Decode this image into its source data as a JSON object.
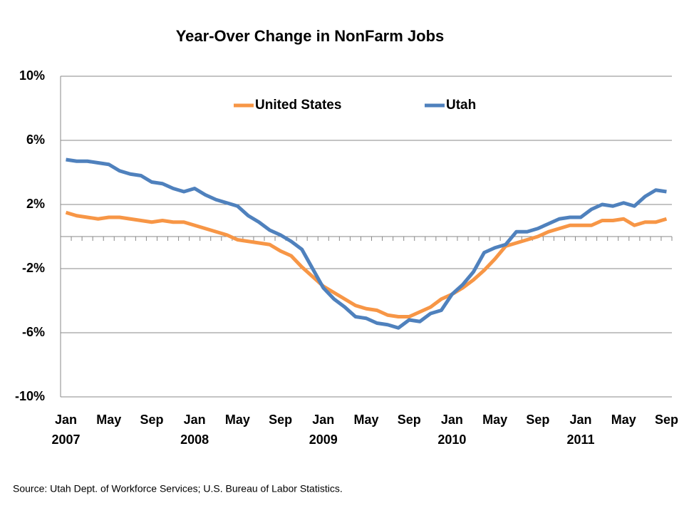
{
  "chart_data": {
    "type": "line",
    "title": "Year-Over Change in NonFarm Jobs",
    "source": "Source: Utah Dept. of Workforce Services; U.S. Bureau of Labor Statistics.",
    "categories": [
      "Jan 2007",
      null,
      null,
      null,
      "May",
      null,
      null,
      null,
      "Sep",
      null,
      null,
      null,
      "Jan 2008",
      null,
      null,
      null,
      "May",
      null,
      null,
      null,
      "Sep",
      null,
      null,
      null,
      "Jan 2009",
      null,
      null,
      null,
      "May",
      null,
      null,
      null,
      "Sep",
      null,
      null,
      null,
      "Jan 2010",
      null,
      null,
      null,
      "May",
      null,
      null,
      null,
      "Sep",
      null,
      null,
      null,
      "Jan 2011",
      null,
      null,
      null,
      "May",
      null,
      null,
      null,
      "Sep"
    ],
    "series": [
      {
        "name": "United States",
        "color": "#f79646",
        "values": [
          1.5,
          1.3,
          1.2,
          1.1,
          1.2,
          1.2,
          1.1,
          1.0,
          0.9,
          1.0,
          0.9,
          0.9,
          0.7,
          0.5,
          0.3,
          0.1,
          -0.2,
          -0.3,
          -0.4,
          -0.5,
          -0.9,
          -1.2,
          -1.9,
          -2.5,
          -3.1,
          -3.5,
          -3.9,
          -4.3,
          -4.5,
          -4.6,
          -4.9,
          -5.0,
          -5.0,
          -4.7,
          -4.4,
          -3.9,
          -3.6,
          -3.2,
          -2.7,
          -2.1,
          -1.4,
          -0.6,
          -0.4,
          -0.2,
          0.0,
          0.3,
          0.5,
          0.7,
          0.7,
          0.7,
          1.0,
          1.0,
          1.1,
          0.7,
          0.9,
          0.9,
          1.1
        ]
      },
      {
        "name": "Utah",
        "color": "#4f81bd",
        "values": [
          4.8,
          4.7,
          4.7,
          4.6,
          4.5,
          4.1,
          3.9,
          3.8,
          3.4,
          3.3,
          3.0,
          2.8,
          3.0,
          2.6,
          2.3,
          2.1,
          1.9,
          1.3,
          0.9,
          0.4,
          0.1,
          -0.3,
          -0.8,
          -2.0,
          -3.2,
          -3.9,
          -4.4,
          -5.0,
          -5.1,
          -5.4,
          -5.5,
          -5.7,
          -5.2,
          -5.3,
          -4.8,
          -4.6,
          -3.6,
          -3.0,
          -2.2,
          -1.0,
          -0.7,
          -0.5,
          0.3,
          0.3,
          0.5,
          0.8,
          1.1,
          1.2,
          1.2,
          1.7,
          2.0,
          1.9,
          2.1,
          1.9,
          2.5,
          2.9,
          2.8
        ]
      }
    ],
    "ylim": [
      -10,
      10
    ],
    "yticks": [
      {
        "value": -10,
        "label": "-10%"
      },
      {
        "value": -6,
        "label": "-6%"
      },
      {
        "value": -2,
        "label": "-2%"
      },
      {
        "value": 2,
        "label": "2%"
      },
      {
        "value": 6,
        "label": "6%"
      },
      {
        "value": 10,
        "label": "10%"
      }
    ],
    "grid": true,
    "legend": "top"
  }
}
